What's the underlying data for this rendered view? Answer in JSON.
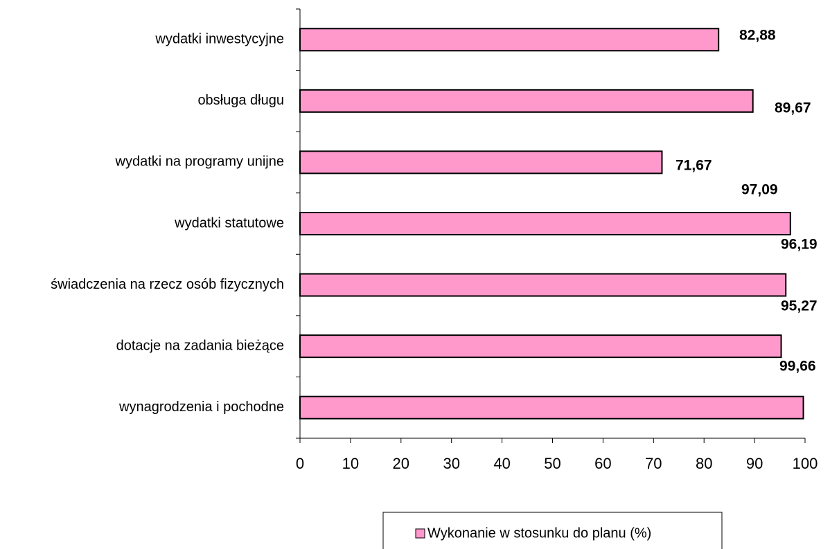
{
  "chart_data": {
    "type": "hbar",
    "categories": [
      "wydatki inwestycyjne",
      "obsługa długu",
      "wydatki na programy unijne",
      "wydatki statutowe",
      "świadczenia na rzecz osób fizycznych",
      "dotacje na zadania bieżące",
      "wynagrodzenia i pochodne"
    ],
    "series": [
      {
        "name": "Wykonanie w stosunku do planu (%)",
        "color": "#ff99cc",
        "values": [
          82.88,
          89.67,
          71.67,
          97.09,
          96.19,
          95.27,
          99.66
        ],
        "value_labels": [
          "82,88",
          "89,67",
          "71,67",
          "97,09",
          "96,19",
          "95,27",
          "99,66"
        ]
      }
    ],
    "xlim": [
      0,
      100
    ],
    "xticks": [
      0,
      10,
      20,
      30,
      40,
      50,
      60,
      70,
      80,
      90,
      100
    ],
    "grid": false,
    "legend": "bottom"
  }
}
